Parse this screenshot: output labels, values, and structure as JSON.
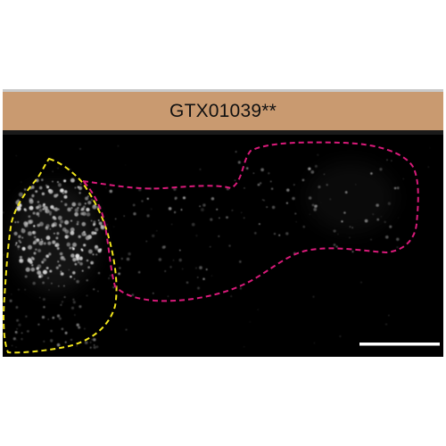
{
  "figure": {
    "panel_title": "GTX01039**",
    "background_color": "#000000",
    "title_bar_color": "#c99a70",
    "outlines": [
      {
        "name": "left-cell-outline",
        "color": "#f2e61c",
        "style": "dashed"
      },
      {
        "name": "right-cell-outline",
        "color": "#d91a7a",
        "style": "dashed"
      }
    ],
    "scale_bar_color": "#ffffff"
  }
}
